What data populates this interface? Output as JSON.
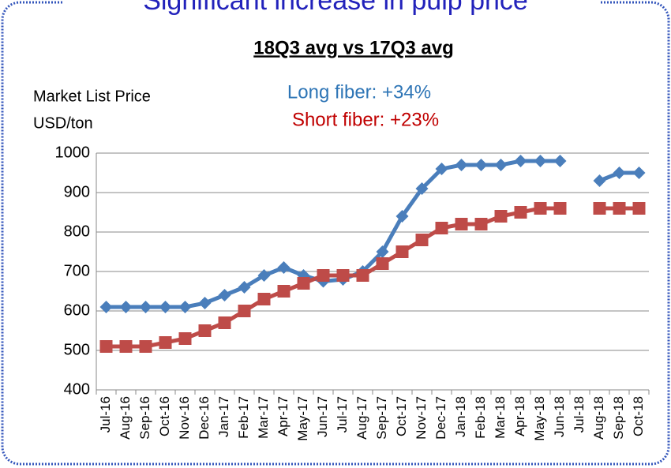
{
  "chart_data": {
    "type": "line",
    "title": "Significant increase in pulp price",
    "subtitle": "18Q3 avg vs 17Q3 avg",
    "annotations": [
      "Long fiber: +34%",
      "Short fiber: +23%"
    ],
    "y_label": [
      "Market List Price",
      "USD/ton"
    ],
    "categories": [
      "Jul-16",
      "Aug-16",
      "Sep-16",
      "Oct-16",
      "Nov-16",
      "Dec-16",
      "Jan-17",
      "Feb-17",
      "Mar-17",
      "Apr-17",
      "May-17",
      "Jun-17",
      "Jul-17",
      "Aug-17",
      "Sep-17",
      "Oct-17",
      "Nov-17",
      "Dec-17",
      "Jan-18",
      "Feb-18",
      "Mar-18",
      "Apr-18",
      "May-18",
      "Jun-18",
      "Jul-18",
      "Aug-18",
      "Sep-18",
      "Oct-18"
    ],
    "series": [
      {
        "name": "Long fiber",
        "color": "#4a7ebb",
        "marker": "diamond",
        "values": [
          610,
          610,
          610,
          610,
          610,
          620,
          640,
          660,
          690,
          710,
          690,
          675,
          680,
          700,
          750,
          840,
          910,
          960,
          970,
          970,
          970,
          980,
          980,
          980,
          null,
          930,
          950,
          950
        ]
      },
      {
        "name": "Short fiber",
        "color": "#be4b48",
        "marker": "square",
        "values": [
          510,
          510,
          510,
          520,
          530,
          550,
          570,
          600,
          630,
          650,
          670,
          690,
          690,
          690,
          720,
          750,
          780,
          810,
          820,
          820,
          840,
          850,
          860,
          860,
          null,
          860,
          860,
          860
        ]
      }
    ],
    "ylim": [
      400,
      1000
    ],
    "yticks": [
      400,
      500,
      600,
      700,
      800,
      900,
      1000
    ],
    "grid": true
  }
}
